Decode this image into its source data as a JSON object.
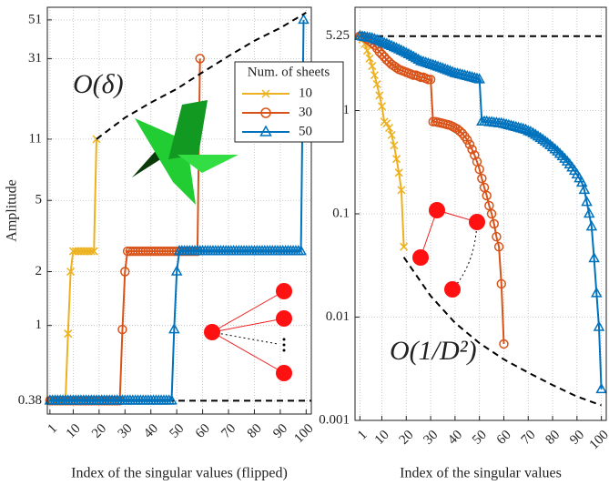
{
  "chart_data": [
    {
      "type": "line",
      "xlabel": "Index of the singular values (flipped)",
      "ylabel": "Amplitude",
      "log_y": true,
      "grid": true,
      "legend": "upper right",
      "legend_title": "Num. of sheets",
      "annotation": "O(δ)",
      "xlim": [
        0,
        102
      ],
      "xticks": [
        1,
        10,
        20,
        30,
        40,
        50,
        60,
        70,
        80,
        90,
        100
      ],
      "ylim": [
        0.32,
        60
      ],
      "yticks": [
        0.38,
        1,
        2,
        5,
        11,
        31,
        51
      ],
      "hline": 0.38,
      "curve": {
        "x": [
          19,
          30,
          40,
          50,
          60,
          70,
          80,
          90,
          100
        ],
        "y": [
          11,
          14.5,
          17.6,
          21,
          26,
          32,
          39,
          46,
          56
        ]
      },
      "x": [
        1,
        2,
        3,
        4,
        5,
        6,
        7,
        8,
        9,
        10,
        11,
        12,
        13,
        14,
        15,
        16,
        17,
        18,
        19,
        20,
        21,
        22,
        23,
        24,
        25,
        26,
        27,
        28,
        29,
        30,
        31,
        32,
        33,
        34,
        35,
        36,
        37,
        38,
        39,
        40,
        41,
        42,
        43,
        44,
        45,
        46,
        47,
        48,
        49,
        50,
        51,
        52,
        53,
        54,
        55,
        56,
        57,
        58,
        59,
        60,
        61,
        62,
        63,
        64,
        65,
        66,
        67,
        68,
        69,
        70,
        71,
        72,
        73,
        74,
        75,
        76,
        77,
        78,
        79,
        80,
        81,
        82,
        83,
        84,
        85,
        86,
        87,
        88,
        89,
        90,
        91,
        92,
        93,
        94,
        95,
        96,
        97,
        98,
        99,
        100
      ],
      "series": [
        {
          "name": "10",
          "color": "#EDB120",
          "marker": "x",
          "values": [
            0.38,
            0.38,
            0.38,
            0.38,
            0.38,
            0.38,
            0.38,
            0.9,
            2,
            2.6,
            2.6,
            2.6,
            2.6,
            2.6,
            2.6,
            2.6,
            2.6,
            2.6,
            11,
            null,
            null,
            null,
            null,
            null,
            null,
            null,
            null,
            null,
            null,
            null,
            null,
            null,
            null,
            null,
            null,
            null,
            null,
            null,
            null,
            null,
            null,
            null,
            null,
            null,
            null,
            null,
            null,
            null,
            null,
            null,
            null,
            null,
            null,
            null,
            null,
            null,
            null,
            null,
            null,
            null,
            null,
            null,
            null,
            null,
            null,
            null,
            null,
            null,
            null,
            null,
            null,
            null,
            null,
            null,
            null,
            null,
            null,
            null,
            null,
            null,
            null,
            null,
            null,
            null,
            null,
            null,
            null,
            null,
            null,
            null,
            null,
            null,
            null,
            null,
            null,
            null,
            null,
            null,
            null,
            null
          ]
        },
        {
          "name": "30",
          "color": "#D95319",
          "marker": "o",
          "values": [
            0.38,
            0.38,
            0.38,
            0.38,
            0.38,
            0.38,
            0.38,
            0.38,
            0.38,
            0.38,
            0.38,
            0.38,
            0.38,
            0.38,
            0.38,
            0.38,
            0.38,
            0.38,
            0.38,
            0.38,
            0.38,
            0.38,
            0.38,
            0.38,
            0.38,
            0.38,
            0.38,
            0.38,
            0.95,
            2,
            2.6,
            2.6,
            2.6,
            2.6,
            2.6,
            2.6,
            2.6,
            2.6,
            2.6,
            2.6,
            2.6,
            2.6,
            2.6,
            2.6,
            2.6,
            2.6,
            2.6,
            2.6,
            2.6,
            2.6,
            2.6,
            2.6,
            2.6,
            2.6,
            2.6,
            2.6,
            2.6,
            2.6,
            31,
            null,
            null,
            null,
            null,
            null,
            null,
            null,
            null,
            null,
            null,
            null,
            null,
            null,
            null,
            null,
            null,
            null,
            null,
            null,
            null,
            null,
            null,
            null,
            null,
            null,
            null,
            null,
            null,
            null,
            null,
            null,
            null,
            null,
            null,
            null,
            null,
            null,
            null,
            null,
            null,
            null
          ]
        },
        {
          "name": "50",
          "color": "#0072BD",
          "marker": "^",
          "values": [
            0.38,
            0.38,
            0.38,
            0.38,
            0.38,
            0.38,
            0.38,
            0.38,
            0.38,
            0.38,
            0.38,
            0.38,
            0.38,
            0.38,
            0.38,
            0.38,
            0.38,
            0.38,
            0.38,
            0.38,
            0.38,
            0.38,
            0.38,
            0.38,
            0.38,
            0.38,
            0.38,
            0.38,
            0.38,
            0.38,
            0.38,
            0.38,
            0.38,
            0.38,
            0.38,
            0.38,
            0.38,
            0.38,
            0.38,
            0.38,
            0.38,
            0.38,
            0.38,
            0.38,
            0.38,
            0.38,
            0.38,
            0.38,
            0.95,
            2,
            2.6,
            2.6,
            2.6,
            2.6,
            2.6,
            2.6,
            2.6,
            2.6,
            2.6,
            2.6,
            2.6,
            2.6,
            2.6,
            2.6,
            2.6,
            2.6,
            2.6,
            2.6,
            2.6,
            2.6,
            2.6,
            2.6,
            2.6,
            2.6,
            2.6,
            2.6,
            2.6,
            2.6,
            2.6,
            2.6,
            2.6,
            2.6,
            2.6,
            2.6,
            2.6,
            2.6,
            2.6,
            2.6,
            2.6,
            2.6,
            2.6,
            2.6,
            2.6,
            2.6,
            2.6,
            2.6,
            2.6,
            2.6,
            51,
            null
          ]
        }
      ]
    },
    {
      "type": "line",
      "xlabel": "Index of the singular values",
      "log_y": true,
      "grid": true,
      "annotation": "O(1/D²)",
      "xlim": [
        -1,
        102
      ],
      "xticks": [
        1,
        10,
        20,
        30,
        40,
        50,
        60,
        70,
        80,
        90,
        100
      ],
      "ylim": [
        0.001,
        10
      ],
      "yticks": [
        0.001,
        0.01,
        0.1,
        1,
        5.25
      ],
      "hline": 5.25,
      "curve": {
        "x": [
          19,
          30,
          40,
          50,
          60,
          70,
          80,
          90,
          100
        ],
        "y": [
          0.038,
          0.016,
          0.0088,
          0.0056,
          0.0039,
          0.0029,
          0.0022,
          0.0017,
          0.0014
        ]
      },
      "x": [
        1,
        2,
        3,
        4,
        5,
        6,
        7,
        8,
        9,
        10,
        11,
        12,
        13,
        14,
        15,
        16,
        17,
        18,
        19,
        20,
        21,
        22,
        23,
        24,
        25,
        26,
        27,
        28,
        29,
        30,
        31,
        32,
        33,
        34,
        35,
        36,
        37,
        38,
        39,
        40,
        41,
        42,
        43,
        44,
        45,
        46,
        47,
        48,
        49,
        50,
        51,
        52,
        53,
        54,
        55,
        56,
        57,
        58,
        59,
        60,
        61,
        62,
        63,
        64,
        65,
        66,
        67,
        68,
        69,
        70,
        71,
        72,
        73,
        74,
        75,
        76,
        77,
        78,
        79,
        80,
        81,
        82,
        83,
        84,
        85,
        86,
        87,
        88,
        89,
        90,
        91,
        92,
        93,
        94,
        95,
        96,
        97,
        98,
        99,
        100
      ],
      "series": [
        {
          "color": "#EDB120",
          "marker": "x",
          "values": [
            5.25,
            4.9,
            4.4,
            3.8,
            3.2,
            2.7,
            2.2,
            1.8,
            1.4,
            1.1,
            0.78,
            0.75,
            0.68,
            0.58,
            0.46,
            0.34,
            0.25,
            0.17,
            0.048,
            null,
            null,
            null,
            null,
            null,
            null,
            null,
            null,
            null,
            null,
            null,
            null,
            null,
            null,
            null,
            null,
            null,
            null,
            null,
            null,
            null,
            null,
            null,
            null,
            null,
            null,
            null,
            null,
            null,
            null,
            null,
            null,
            null,
            null,
            null,
            null,
            null,
            null,
            null,
            null,
            null,
            null,
            null,
            null,
            null,
            null,
            null,
            null,
            null,
            null,
            null,
            null,
            null,
            null,
            null,
            null,
            null,
            null,
            null,
            null,
            null,
            null,
            null,
            null,
            null,
            null,
            null,
            null,
            null,
            null,
            null,
            null,
            null,
            null,
            null,
            null,
            null,
            null,
            null,
            null,
            null
          ]
        },
        {
          "color": "#D95319",
          "marker": "o",
          "values": [
            5.25,
            5.2,
            5.1,
            4.9,
            4.7,
            4.5,
            4.3,
            4.0,
            3.7,
            3.5,
            3.3,
            3.1,
            2.95,
            2.8,
            2.7,
            2.6,
            2.5,
            2.45,
            2.4,
            2.35,
            2.3,
            2.25,
            2.2,
            2.2,
            2.15,
            2.1,
            2.1,
            2.05,
            2.0,
            2.0,
            0.78,
            0.78,
            0.77,
            0.76,
            0.75,
            0.74,
            0.73,
            0.72,
            0.7,
            0.68,
            0.66,
            0.63,
            0.6,
            0.56,
            0.52,
            0.47,
            0.42,
            0.37,
            0.32,
            0.27,
            0.22,
            0.18,
            0.15,
            0.12,
            0.1,
            0.08,
            0.06,
            0.048,
            0.021,
            0.0055,
            null,
            null,
            null,
            null,
            null,
            null,
            null,
            null,
            null,
            null,
            null,
            null,
            null,
            null,
            null,
            null,
            null,
            null,
            null,
            null,
            null,
            null,
            null,
            null,
            null,
            null,
            null,
            null,
            null,
            null,
            null,
            null,
            null,
            null,
            null,
            null,
            null,
            null,
            null,
            null
          ]
        },
        {
          "color": "#0072BD",
          "marker": "^",
          "values": [
            5.25,
            5.2,
            5.15,
            5.1,
            5.05,
            5.0,
            4.9,
            4.8,
            4.7,
            4.6,
            4.5,
            4.4,
            4.3,
            4.2,
            4.1,
            4.0,
            3.9,
            3.8,
            3.7,
            3.6,
            3.5,
            3.4,
            3.3,
            3.2,
            3.1,
            3.0,
            2.95,
            2.9,
            2.85,
            2.8,
            2.75,
            2.7,
            2.65,
            2.6,
            2.55,
            2.5,
            2.45,
            2.4,
            2.35,
            2.3,
            2.27,
            2.24,
            2.21,
            2.18,
            2.15,
            2.12,
            2.09,
            2.06,
            2.03,
            2.0,
            0.78,
            0.78,
            0.78,
            0.77,
            0.77,
            0.76,
            0.76,
            0.75,
            0.75,
            0.74,
            0.73,
            0.72,
            0.71,
            0.7,
            0.69,
            0.68,
            0.67,
            0.66,
            0.65,
            0.63,
            0.62,
            0.6,
            0.58,
            0.56,
            0.54,
            0.52,
            0.5,
            0.48,
            0.46,
            0.44,
            0.42,
            0.4,
            0.38,
            0.36,
            0.34,
            0.32,
            0.3,
            0.28,
            0.26,
            0.24,
            0.22,
            0.2,
            0.17,
            0.13,
            0.1,
            0.075,
            0.037,
            0.017,
            0.008,
            0.002
          ]
        }
      ]
    }
  ]
}
